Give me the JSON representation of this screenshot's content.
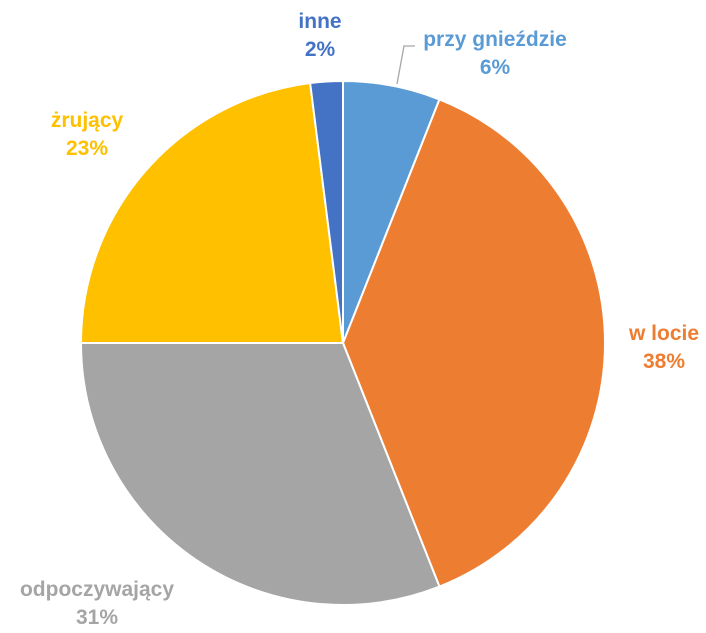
{
  "chart_data": {
    "type": "pie",
    "title": "",
    "slices": [
      {
        "label": "przy gnieździe",
        "value": 6,
        "percent_label": "6%",
        "color": "#5B9BD5"
      },
      {
        "label": "w locie",
        "value": 38,
        "percent_label": "38%",
        "color": "#ED7D31"
      },
      {
        "label": "odpoczywający",
        "value": 31,
        "percent_label": "31%",
        "color": "#A5A5A5"
      },
      {
        "label": "żrujący",
        "value": 23,
        "percent_label": "23%",
        "color": "#FFC000"
      },
      {
        "label": "inne",
        "value": 2,
        "percent_label": "2%",
        "color": "#4472C4"
      }
    ],
    "start_angle": "12 o'clock",
    "direction": "clockwise",
    "legend": "none",
    "data_labels": "outside, category name and percentage"
  }
}
